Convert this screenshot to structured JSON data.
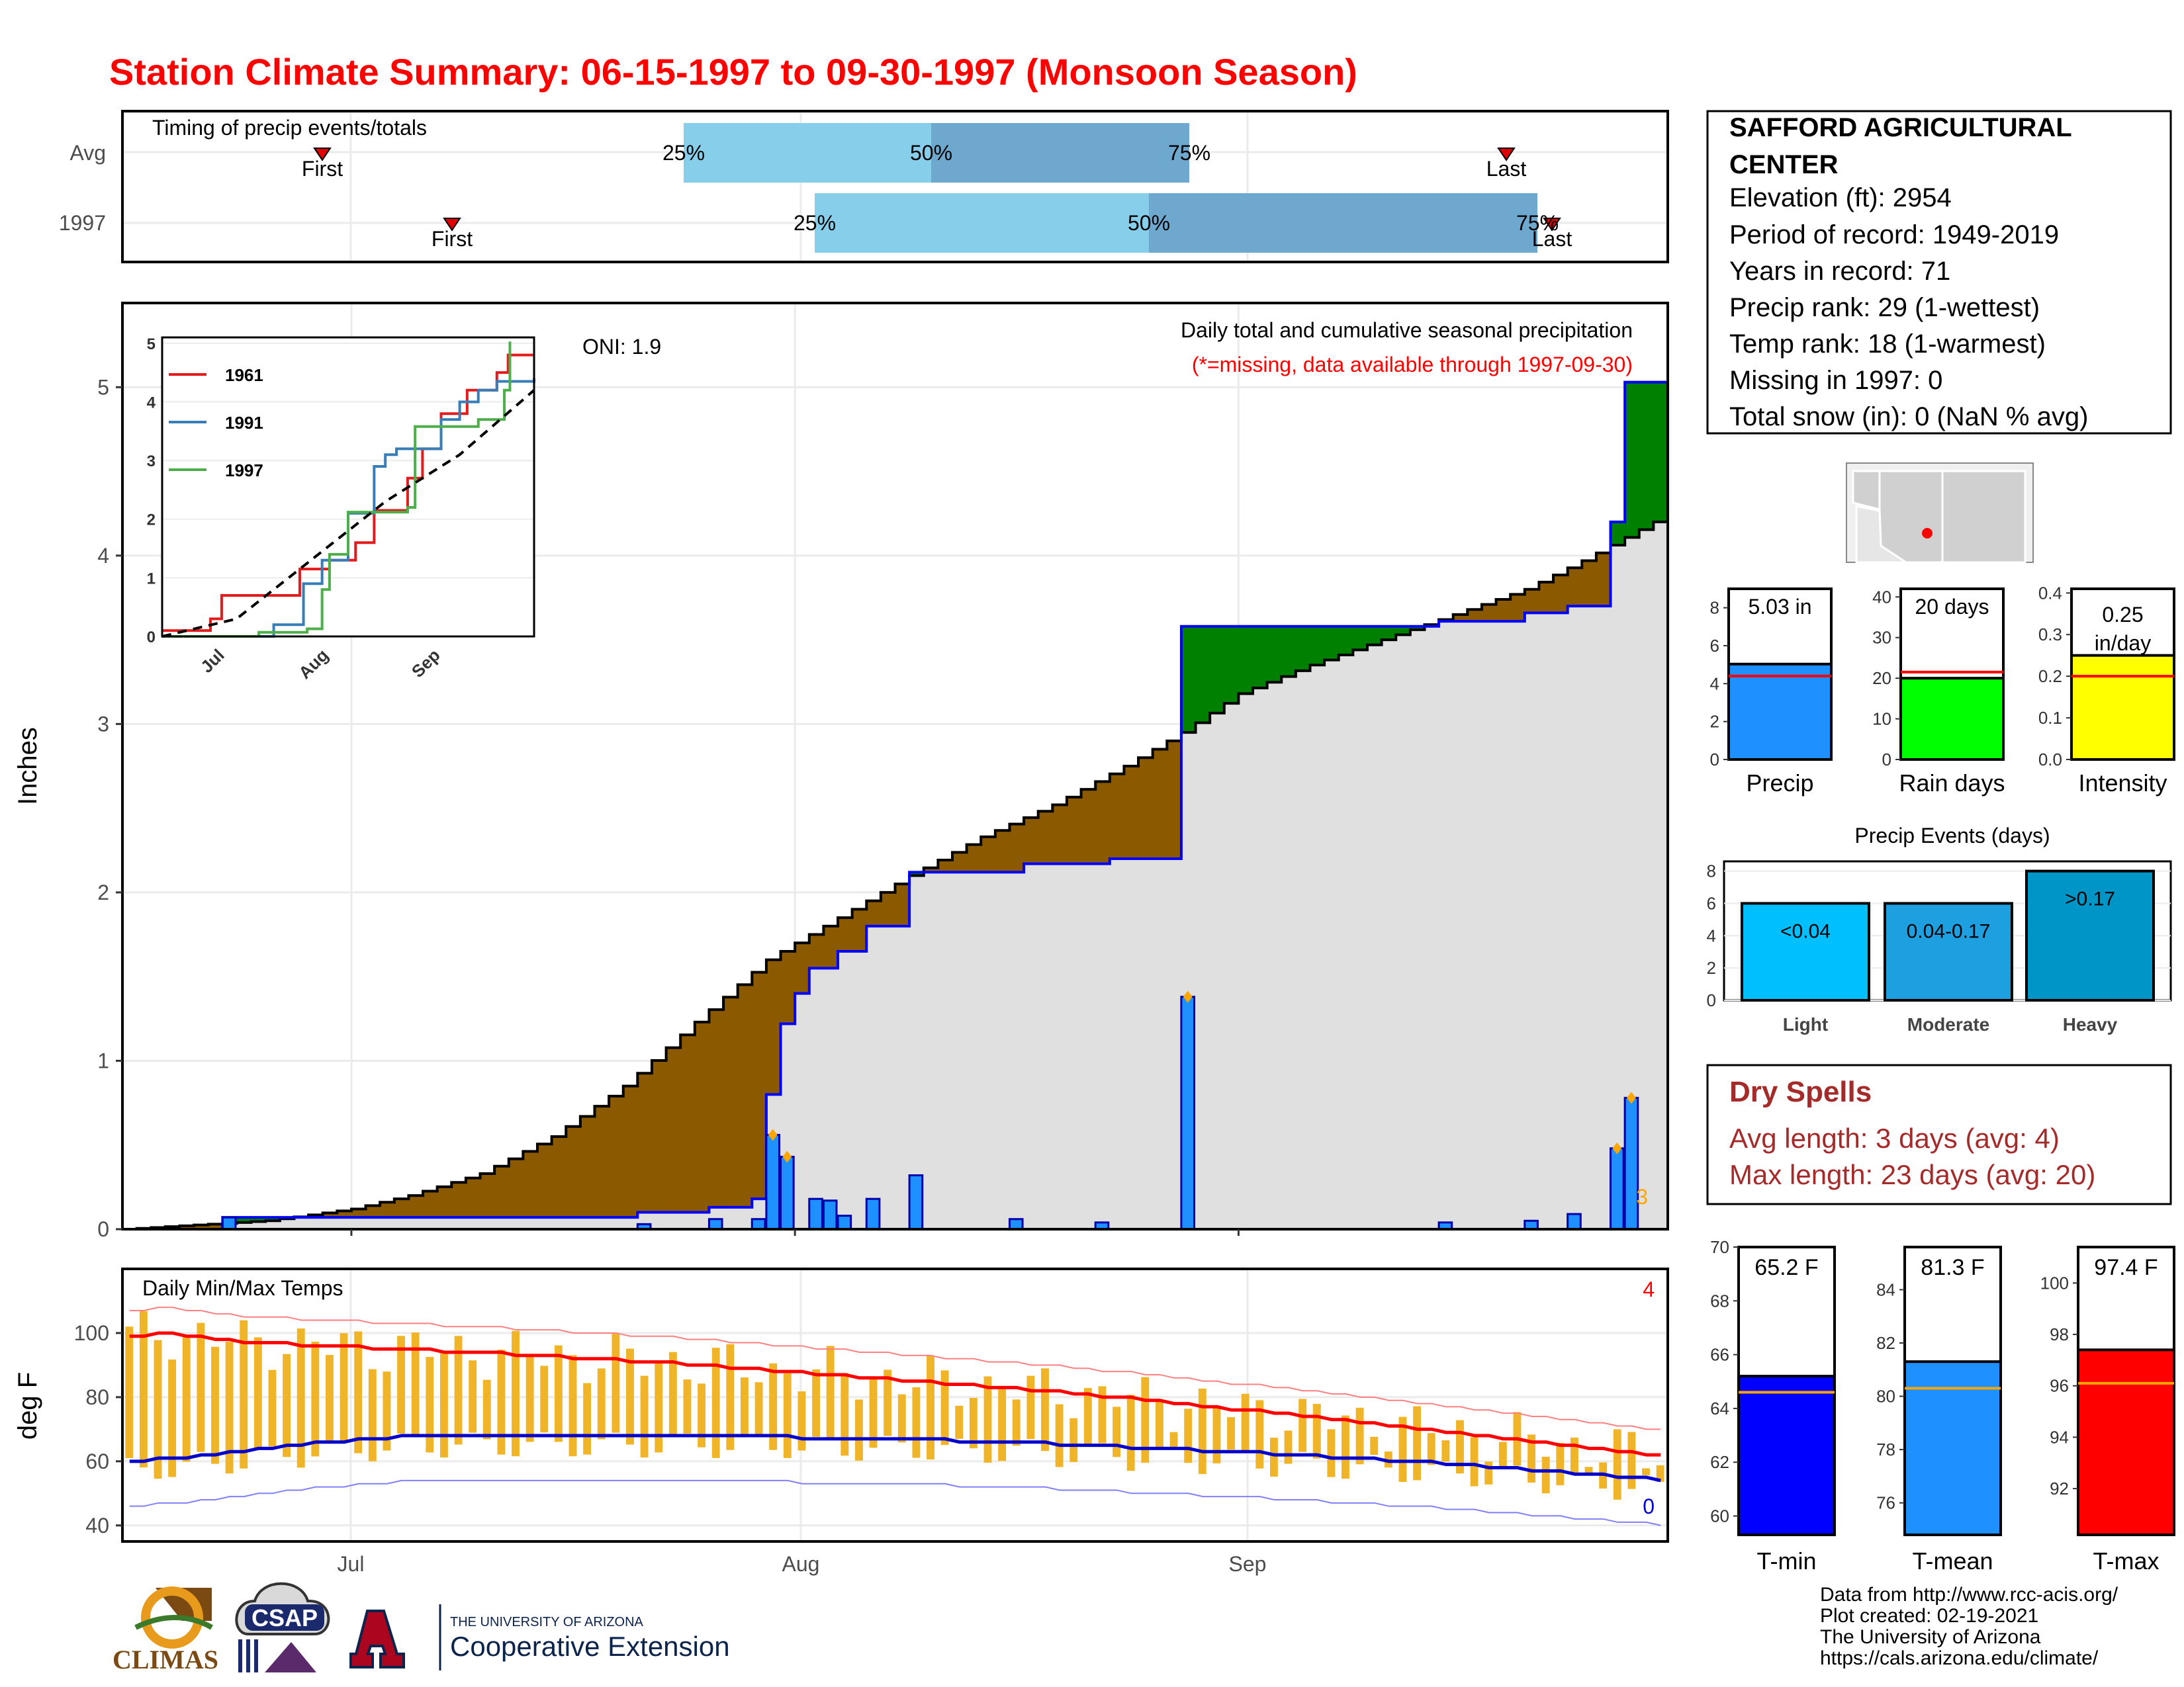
{
  "title": "Station Climate Summary: 06-15-1997 to 09-30-1997 (Monsoon Season)",
  "colors": {
    "title": "#ff0000",
    "accumulation_dry": "#8b5a00",
    "accumulation_wet": "#008000",
    "bar": "#1e90ff",
    "grey": "#e0e0e0",
    "tmax": "#ff0000",
    "tmin": "#0000cc",
    "range": "#f0b429"
  },
  "timing_panel": {
    "title": "Timing of precip events/totals",
    "rows": [
      "Avg",
      "1997"
    ],
    "first_label": "First",
    "last_label": "Last",
    "pct_labels": [
      "25%",
      "50%",
      "75%"
    ]
  },
  "precip_panel": {
    "ylabel": "Inches",
    "oni": "ONI: 1.9",
    "subtitle": "Daily total and cumulative seasonal precipitation",
    "missing_note": "(*=missing, data available through 1997-09-30)",
    "count": "3",
    "inset_legend": [
      "1961",
      "1991",
      "1997"
    ],
    "inset_colors": [
      "#e41a1c",
      "#377eb8",
      "#4daf4a"
    ],
    "inset_x_ticks": [
      "Jul",
      "Aug",
      "Sep"
    ]
  },
  "temp_panel": {
    "title": "Daily Min/Max Temps",
    "ylabel": "deg F",
    "count_max": "4",
    "count_min": "0",
    "x_ticks": [
      "Jul",
      "Aug",
      "Sep"
    ]
  },
  "station_info": {
    "name_line1": "SAFFORD AGRICULTURAL",
    "name_line2": "CENTER",
    "lines": [
      "Elevation (ft): 2954",
      "Period of record: 1949-2019",
      "Years in record: 71",
      "Precip rank: 29 (1-wettest)",
      "Temp rank: 18 (1-warmest)",
      "Missing in 1997: 0",
      "Total snow (in): 0 (NaN % avg)"
    ]
  },
  "summary_bars": [
    {
      "label": "Precip",
      "value_text": "5.03 in",
      "value": 5.03,
      "avg": 4.4,
      "ymax": 9,
      "ticks": [
        0,
        2,
        4,
        6,
        8
      ],
      "color": "#1e90ff"
    },
    {
      "label": "Rain days",
      "value_text": "20 days",
      "value": 20,
      "avg": 21.5,
      "ymax": 42,
      "ticks": [
        0,
        10,
        20,
        30,
        40
      ],
      "color": "#00ff00"
    },
    {
      "label": "Intensity",
      "value_text": "0.25 in/day",
      "value": 0.25,
      "avg": 0.2,
      "ymax": 0.41,
      "ticks": [
        "0.0",
        "0.1",
        "0.2",
        "0.3",
        "0.4"
      ],
      "color": "#ffff00"
    }
  ],
  "events": {
    "title": "Precip Events (days)",
    "categories": [
      "Light",
      "Moderate",
      "Heavy"
    ],
    "range_labels": [
      "<0.04",
      "0.04-0.17",
      ">0.17"
    ],
    "values": [
      6,
      6,
      8
    ],
    "ticks": [
      0,
      2,
      4,
      6,
      8
    ],
    "colors": [
      "#00bfff",
      "#1e9fe0",
      "#0095c7"
    ]
  },
  "dry_spells": {
    "title": "Dry Spells",
    "avg_length": "Avg length: 3 days (avg: 4)",
    "max_length": "Max length: 23 days (avg: 20)"
  },
  "temp_bars": [
    {
      "label": "T-min",
      "value_text": "65.2 F",
      "value": 65.2,
      "avg": 64.6,
      "ylim": [
        59.3,
        70
      ],
      "ticks": [
        60,
        62,
        64,
        66,
        68,
        70
      ],
      "color": "#0000ff"
    },
    {
      "label": "T-mean",
      "value_text": "81.3 F",
      "value": 81.3,
      "avg": 80.3,
      "ylim": [
        74.8,
        85.6
      ],
      "ticks": [
        76,
        78,
        80,
        82,
        84
      ],
      "color": "#1e90ff"
    },
    {
      "label": "T-max",
      "value_text": "97.4 F",
      "value": 97.4,
      "avg": 96.1,
      "ylim": [
        90.2,
        101.4
      ],
      "ticks": [
        92,
        94,
        96,
        98,
        100
      ],
      "color": "#ff0000"
    }
  ],
  "footer": {
    "lines": [
      "Data from http://www.rcc-acis.org/",
      "Plot created: 02-19-2021",
      "The University of Arizona",
      "https://cals.arizona.edu/climate/"
    ]
  },
  "logos": {
    "climas": "CLIMAS",
    "csap": "CSAP",
    "ua_small": "THE UNIVERSITY OF ARIZONA",
    "ua_big": "Cooperative Extension"
  },
  "chart_data": [
    {
      "type": "area",
      "title": "Daily total and cumulative seasonal precipitation",
      "xlabel": "",
      "ylabel": "Inches",
      "x_range": [
        "1997-06-15",
        "1997-09-30"
      ],
      "ylim": [
        0,
        5.5
      ],
      "x_ticks": [
        "Jul",
        "Aug",
        "Sep"
      ],
      "cumulative_1997": [
        [
          "1997-06-15",
          0
        ],
        [
          "1997-06-22",
          0.07
        ],
        [
          "1997-07-21",
          0.1
        ],
        [
          "1997-07-26",
          0.13
        ],
        [
          "1997-07-29",
          0.18
        ],
        [
          "1997-07-30",
          0.8
        ],
        [
          "1997-07-31",
          1.22
        ],
        [
          "1997-08-01",
          1.4
        ],
        [
          "1997-08-02",
          1.55
        ],
        [
          "1997-08-04",
          1.65
        ],
        [
          "1997-08-06",
          1.8
        ],
        [
          "1997-08-09",
          2.12
        ],
        [
          "1997-08-17",
          2.17
        ],
        [
          "1997-08-23",
          2.2
        ],
        [
          "1997-08-28",
          3.58
        ],
        [
          "1997-09-15",
          3.61
        ],
        [
          "1997-09-21",
          3.66
        ],
        [
          "1997-09-24",
          3.7
        ],
        [
          "1997-09-27",
          4.2
        ],
        [
          "1997-09-28",
          5.03
        ],
        [
          "1997-09-30",
          5.03
        ]
      ],
      "cumulative_avg": [
        [
          "1997-06-15",
          0
        ],
        [
          "1997-06-25",
          0.05
        ],
        [
          "1997-07-01",
          0.12
        ],
        [
          "1997-07-05",
          0.2
        ],
        [
          "1997-07-10",
          0.33
        ],
        [
          "1997-07-15",
          0.55
        ],
        [
          "1997-07-20",
          0.85
        ],
        [
          "1997-07-25",
          1.23
        ],
        [
          "1997-07-30",
          1.6
        ],
        [
          "1997-08-04",
          1.85
        ],
        [
          "1997-08-09",
          2.1
        ],
        [
          "1997-08-14",
          2.33
        ],
        [
          "1997-08-19",
          2.52
        ],
        [
          "1997-08-24",
          2.75
        ],
        [
          "1997-08-28",
          2.95
        ],
        [
          "1997-09-01",
          3.18
        ],
        [
          "1997-09-06",
          3.35
        ],
        [
          "1997-09-11",
          3.5
        ],
        [
          "1997-09-16",
          3.65
        ],
        [
          "1997-09-21",
          3.8
        ],
        [
          "1997-09-25",
          3.97
        ],
        [
          "1997-09-30",
          4.2
        ]
      ],
      "daily_1997": [
        [
          "1997-06-22",
          0.07
        ],
        [
          "1997-07-21",
          0.03
        ],
        [
          "1997-07-26",
          0.06
        ],
        [
          "1997-07-29",
          0.06
        ],
        [
          "1997-07-30",
          0.56
        ],
        [
          "1997-07-31",
          0.43
        ],
        [
          "1997-08-02",
          0.18
        ],
        [
          "1997-08-03",
          0.17
        ],
        [
          "1997-08-04",
          0.08
        ],
        [
          "1997-08-06",
          0.18
        ],
        [
          "1997-08-09",
          0.32
        ],
        [
          "1997-08-16",
          0.06
        ],
        [
          "1997-08-22",
          0.04
        ],
        [
          "1997-08-28",
          1.38
        ],
        [
          "1997-09-15",
          0.04
        ],
        [
          "1997-09-21",
          0.05
        ],
        [
          "1997-09-24",
          0.09
        ],
        [
          "1997-09-27",
          0.48
        ],
        [
          "1997-09-28",
          0.78
        ]
      ]
    },
    {
      "type": "line",
      "title": "",
      "inset": true,
      "series_names": [
        "1961",
        "1991",
        "1997"
      ],
      "ylim": [
        0,
        5
      ],
      "x_ticks": [
        "Jul",
        "Aug",
        "Sep"
      ],
      "series": [
        {
          "name": "1961",
          "values": [
            [
              0,
              0.1
            ],
            [
              0.13,
              0.3
            ],
            [
              0.16,
              0.7
            ],
            [
              0.3,
              0.7
            ],
            [
              0.37,
              1.15
            ],
            [
              0.45,
              1.3
            ],
            [
              0.52,
              1.6
            ],
            [
              0.57,
              2.15
            ],
            [
              0.66,
              2.7
            ],
            [
              0.7,
              3.2
            ],
            [
              0.75,
              3.8
            ],
            [
              0.82,
              4.2
            ],
            [
              0.9,
              4.5
            ],
            [
              0.93,
              4.8
            ],
            [
              1.0,
              4.8
            ]
          ]
        },
        {
          "name": "1991",
          "values": [
            [
              0.2,
              0
            ],
            [
              0.3,
              0.2
            ],
            [
              0.38,
              0.9
            ],
            [
              0.43,
              1.3
            ],
            [
              0.5,
              2.1
            ],
            [
              0.57,
              2.9
            ],
            [
              0.6,
              3.1
            ],
            [
              0.63,
              3.2
            ],
            [
              0.75,
              3.7
            ],
            [
              0.8,
              4.0
            ],
            [
              0.85,
              4.2
            ],
            [
              0.9,
              4.35
            ],
            [
              1.0,
              4.4
            ]
          ]
        },
        {
          "name": "1997",
          "values": [
            [
              0,
              0
            ],
            [
              0.26,
              0.07
            ],
            [
              0.39,
              0.13
            ],
            [
              0.43,
              0.8
            ],
            [
              0.45,
              1.4
            ],
            [
              0.5,
              2.12
            ],
            [
              0.66,
              2.2
            ],
            [
              0.68,
              3.58
            ],
            [
              0.85,
              3.7
            ],
            [
              0.92,
              4.2
            ],
            [
              0.935,
              5.03
            ]
          ]
        },
        {
          "name": "Avg",
          "dashed": true,
          "values": [
            [
              0,
              0
            ],
            [
              0.2,
              0.3
            ],
            [
              0.4,
              1.3
            ],
            [
              0.6,
              2.3
            ],
            [
              0.8,
              3.1
            ],
            [
              1.0,
              4.2
            ]
          ]
        }
      ]
    },
    {
      "type": "line",
      "title": "Daily Min/Max Temps",
      "ylabel": "deg F",
      "ylim": [
        35,
        120
      ],
      "x_ticks": [
        "Jul",
        "Aug",
        "Sep"
      ],
      "series": [
        {
          "name": "",
          "values": [
            99,
            99,
            100,
            100,
            99,
            99,
            98,
            98,
            97,
            97,
            97,
            97,
            96,
            96,
            96,
            96,
            96,
            95,
            95,
            95,
            95,
            95,
            94,
            94,
            94,
            94,
            94,
            93,
            93,
            93,
            93,
            92,
            92,
            92,
            92,
            91,
            91,
            91,
            91,
            90,
            90,
            90,
            89,
            89,
            89,
            88,
            88,
            88,
            87,
            87,
            87,
            86,
            86,
            86,
            85,
            85,
            85,
            84,
            84,
            84,
            83,
            83,
            83,
            82,
            82,
            82,
            81,
            81,
            80,
            80,
            80,
            79,
            79,
            78,
            78,
            77,
            77,
            76,
            76,
            76,
            75,
            75,
            74,
            74,
            73,
            73,
            72,
            72,
            71,
            71,
            70,
            70,
            69,
            69,
            68,
            68,
            67,
            67,
            66,
            66,
            65,
            65,
            64,
            64,
            63,
            63,
            62,
            62
          ]
        },
        {
          "name": "",
          "values": [
            60,
            60,
            61,
            61,
            61,
            62,
            62,
            63,
            63,
            64,
            64,
            65,
            65,
            66,
            66,
            66,
            67,
            67,
            67,
            68,
            68,
            68,
            68,
            68,
            68,
            68,
            68,
            68,
            68,
            68,
            68,
            68,
            68,
            68,
            68,
            68,
            68,
            68,
            68,
            68,
            68,
            68,
            68,
            68,
            68,
            68,
            68,
            67,
            67,
            67,
            67,
            67,
            67,
            67,
            67,
            67,
            67,
            67,
            66,
            66,
            66,
            66,
            66,
            66,
            66,
            65,
            65,
            65,
            65,
            65,
            64,
            64,
            64,
            64,
            64,
            63,
            63,
            63,
            63,
            63,
            62,
            62,
            62,
            62,
            61,
            61,
            61,
            61,
            60,
            60,
            60,
            60,
            59,
            59,
            59,
            58,
            58,
            58,
            57,
            57,
            57,
            56,
            56,
            56,
            55,
            55,
            55,
            54
          ]
        }
      ]
    }
  ]
}
